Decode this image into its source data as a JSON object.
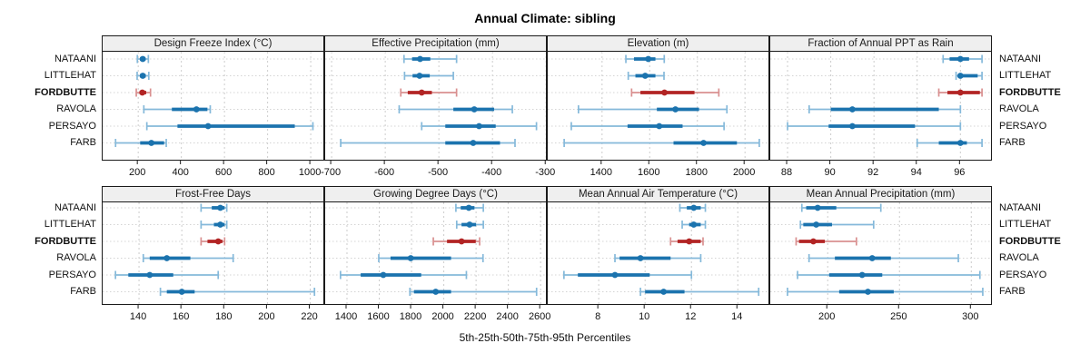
{
  "title": "Annual Climate: sibling",
  "caption": "5th-25th-50th-75th-95th Percentiles",
  "colors": {
    "series_normal": "#1b73ae",
    "series_normal_light": "#85b9da",
    "series_highlight": "#b22424",
    "series_highlight_light": "#d99090",
    "strip_bg": "#efefef",
    "panel_border": "#1a1a1a",
    "grid_vertical": "#cccccc",
    "grid_horizontal": "#d4d4d4",
    "text": "#111111"
  },
  "chart_data": {
    "type": "dot-whisker-percentiles",
    "percentiles": [
      5,
      25,
      50,
      75,
      95
    ],
    "rows": [
      "NATAANI",
      "LITTLEHAT",
      "FORDBUTTE",
      "RAVOLA",
      "PERSAYO",
      "FARB"
    ],
    "highlight_row": "FORDBUTTE",
    "grid": true,
    "layout": "2 rows x 4 columns, row labels on left and right, strip titles on top of each panel, x axis below each panel row",
    "panels": [
      {
        "title": "Design Freeze Index (°C)",
        "ticks": [
          200,
          400,
          600,
          800,
          1000
        ],
        "xlim": [
          35,
          1067
        ],
        "values": [
          [
            196,
            208,
            221,
            234,
            247
          ],
          [
            195,
            208,
            221,
            235,
            249
          ],
          [
            191,
            206,
            219,
            237,
            257
          ],
          [
            226,
            356,
            470,
            521,
            534
          ],
          [
            240,
            382,
            524,
            926,
            1010
          ],
          [
            95,
            209,
            261,
            320,
            330
          ]
        ]
      },
      {
        "title": "Effective Precipitation (mm)",
        "ticks": [
          -700,
          -600,
          -500,
          -400,
          -300
        ],
        "xlim": [
          -712,
          -297
        ],
        "values": [
          [
            -565,
            -550,
            -535,
            -516,
            -467
          ],
          [
            -564,
            -549,
            -536,
            -517,
            -473
          ],
          [
            -571,
            -558,
            -532,
            -513,
            -467
          ],
          [
            -574,
            -473,
            -434,
            -397,
            -363
          ],
          [
            -532,
            -488,
            -425,
            -394,
            -318
          ],
          [
            -683,
            -488,
            -436,
            -386,
            -358
          ]
        ]
      },
      {
        "title": "Elevation (m)",
        "ticks": [
          1400,
          1600,
          1800,
          2000
        ],
        "xlim": [
          1172,
          2106
        ],
        "values": [
          [
            1500,
            1534,
            1594,
            1624,
            1661
          ],
          [
            1510,
            1540,
            1581,
            1624,
            1660
          ],
          [
            1524,
            1561,
            1662,
            1788,
            1890
          ],
          [
            1301,
            1630,
            1708,
            1807,
            1924
          ],
          [
            1271,
            1507,
            1640,
            1738,
            1912
          ],
          [
            1241,
            1700,
            1826,
            1966,
            2060
          ]
        ]
      },
      {
        "title": "Fraction of Annual PPT as Rain",
        "ticks": [
          88,
          90,
          92,
          94,
          96
        ],
        "xlim": [
          87.2,
          97.5
        ],
        "values": [
          [
            95.2,
            95.5,
            96.0,
            96.4,
            97.0
          ],
          [
            95.8,
            95.9,
            96.0,
            96.8,
            97.0
          ],
          [
            95.0,
            95.4,
            96.0,
            96.9,
            97.0
          ],
          [
            89.0,
            90.0,
            91.0,
            95.0,
            96.0
          ],
          [
            88.0,
            89.9,
            91.0,
            93.9,
            96.0
          ],
          [
            94.0,
            95.0,
            96.0,
            96.3,
            97.0
          ]
        ]
      },
      {
        "title": "Frost-Free Days",
        "ticks": [
          140,
          160,
          180,
          200,
          220
        ],
        "xlim": [
          123,
          227
        ],
        "values": [
          [
            169,
            174,
            178,
            180,
            181
          ],
          [
            169,
            175,
            178,
            180,
            181
          ],
          [
            169,
            172,
            177,
            179,
            180
          ],
          [
            142,
            145,
            153,
            164,
            184
          ],
          [
            129,
            135,
            145,
            156,
            177
          ],
          [
            150,
            153,
            160,
            166,
            222
          ]
        ]
      },
      {
        "title": "Growing Degree Days (°C)",
        "ticks": [
          1400,
          1600,
          1800,
          2000,
          2200,
          2400,
          2600
        ],
        "xlim": [
          1265,
          2644
        ],
        "values": [
          [
            2075,
            2105,
            2155,
            2190,
            2245
          ],
          [
            2080,
            2110,
            2160,
            2200,
            2245
          ],
          [
            1935,
            2020,
            2110,
            2198,
            2222
          ],
          [
            1597,
            1670,
            1795,
            2045,
            2243
          ],
          [
            1360,
            1485,
            1625,
            1860,
            2140
          ],
          [
            1790,
            1815,
            1950,
            2045,
            2575
          ]
        ]
      },
      {
        "title": "Mean Annual Air Temperature (°C)",
        "ticks": [
          8,
          10,
          12,
          14
        ],
        "xlim": [
          5.8,
          15.4
        ],
        "values": [
          [
            11.5,
            11.8,
            12.1,
            12.4,
            12.6
          ],
          [
            11.6,
            11.9,
            12.1,
            12.4,
            12.6
          ],
          [
            11.1,
            11.4,
            11.9,
            12.4,
            12.5
          ],
          [
            8.7,
            8.9,
            9.8,
            11.1,
            12.4
          ],
          [
            6.5,
            7.1,
            8.7,
            10.2,
            12.0
          ],
          [
            9.8,
            10.0,
            10.8,
            11.7,
            14.9
          ]
        ]
      },
      {
        "title": "Mean Annual Precipitation (mm)",
        "ticks": [
          200,
          250,
          300
        ],
        "xlim": [
          160,
          315
        ],
        "values": [
          [
            182,
            185,
            193,
            206,
            237
          ],
          [
            181,
            183,
            192,
            203,
            232
          ],
          [
            178,
            180,
            190,
            198,
            220
          ],
          [
            187,
            205,
            231,
            244,
            291
          ],
          [
            179,
            201,
            224,
            238,
            306
          ],
          [
            172,
            208,
            228,
            246,
            308
          ]
        ]
      }
    ]
  }
}
